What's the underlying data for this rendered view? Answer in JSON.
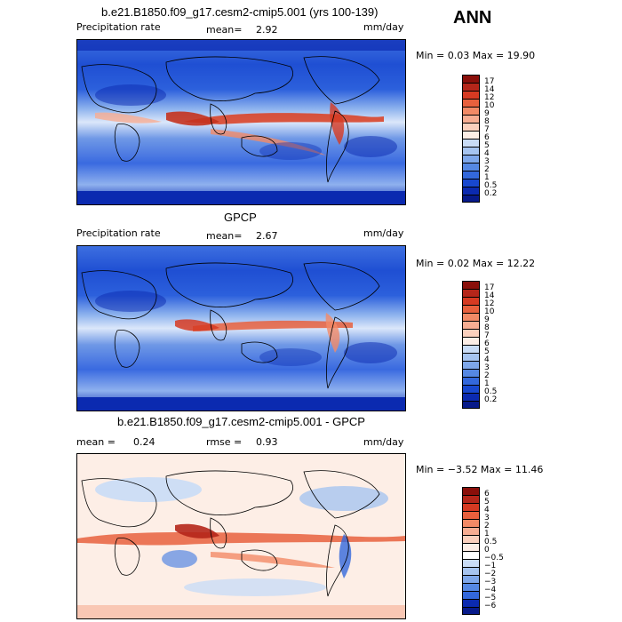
{
  "season": "ANN",
  "panels": [
    {
      "title": "b.e21.B1850.f09_g17.cesm2-cmip5.001 (yrs 100-139)",
      "left_label": "Precipitation rate",
      "stat1_label": "mean=",
      "stat1_value": "2.92",
      "units": "mm/day",
      "minmax": "Min =    0.03 Max =   19.90",
      "colorbar_labels": [
        "17",
        "14",
        "12",
        "10",
        "9",
        "8",
        "7",
        "6",
        "5",
        "4",
        "3",
        "2",
        "1",
        "0.5",
        "0.2"
      ],
      "colorbar_colors": [
        "#8a0f0a",
        "#b5261a",
        "#d63a22",
        "#e8603d",
        "#f28a66",
        "#f7ad92",
        "#fbd0bd",
        "#fdeee6",
        "#c9dcf6",
        "#a6c4f0",
        "#7ea7ea",
        "#5588e3",
        "#3368dc",
        "#1848cf",
        "#0b2ab0",
        "#071a8a"
      ]
    },
    {
      "title": "GPCP",
      "left_label": "Precipitation rate",
      "stat1_label": "mean=",
      "stat1_value": "2.67",
      "units": "mm/day",
      "minmax": "Min =    0.02 Max =   12.22",
      "colorbar_labels": [
        "17",
        "14",
        "12",
        "10",
        "9",
        "8",
        "7",
        "6",
        "5",
        "4",
        "3",
        "2",
        "1",
        "0.5",
        "0.2"
      ],
      "colorbar_colors": [
        "#8a0f0a",
        "#b5261a",
        "#d63a22",
        "#e8603d",
        "#f28a66",
        "#f7ad92",
        "#fbd0bd",
        "#fdeee6",
        "#c9dcf6",
        "#a6c4f0",
        "#7ea7ea",
        "#5588e3",
        "#3368dc",
        "#1848cf",
        "#0b2ab0",
        "#071a8a"
      ]
    },
    {
      "title": "b.e21.B1850.f09_g17.cesm2-cmip5.001 - GPCP",
      "left_label": "mean =",
      "stat1_label": "0.24",
      "stat1_value": "",
      "stat2_label": "rmse =",
      "stat2_value": "0.93",
      "units": "mm/day",
      "minmax": "Min =  −3.52 Max =   11.46",
      "colorbar_labels": [
        "6",
        "5",
        "4",
        "3",
        "2",
        "1",
        "0.5",
        "0",
        "−0.5",
        "−1",
        "−2",
        "−3",
        "−4",
        "−5",
        "−6"
      ],
      "colorbar_colors": [
        "#8a0f0a",
        "#b5261a",
        "#d63a22",
        "#e8603d",
        "#f28a66",
        "#f7ad92",
        "#fbd0bd",
        "#fdeee6",
        "#ffffff",
        "#c9dcf6",
        "#a6c4f0",
        "#7ea7ea",
        "#5588e3",
        "#3368dc",
        "#0b2ab0",
        "#071a8a"
      ]
    }
  ]
}
